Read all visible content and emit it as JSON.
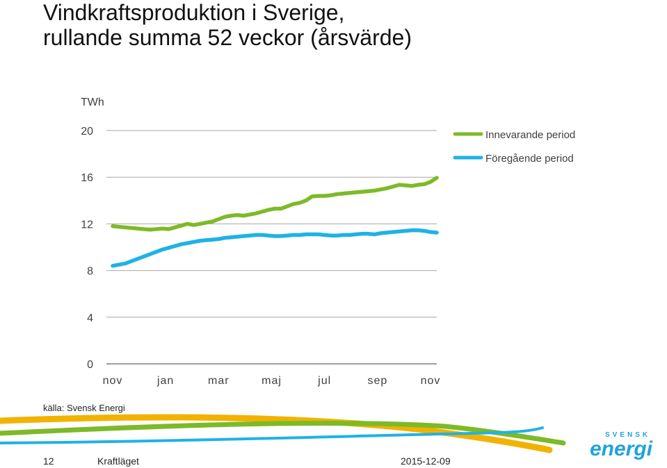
{
  "title_line1": "Vindkraftsproduktion i Sverige,",
  "title_line2": "rullande summa 52 veckor (årsvärde)",
  "chart_data": {
    "type": "line",
    "ylabel": "TWh",
    "ylim": [
      0,
      20
    ],
    "yticks": [
      0,
      4,
      8,
      12,
      16,
      20
    ],
    "x_labels": [
      "nov",
      "jan",
      "mar",
      "maj",
      "jul",
      "sep",
      "nov"
    ],
    "x_label_weeks": [
      1,
      9.5,
      18,
      26.5,
      35,
      43.5,
      52
    ],
    "x_range": [
      0,
      53
    ],
    "grid": true,
    "legend_position": "top-right",
    "series": [
      {
        "name": "Innevarande period",
        "color": "#7DBA27",
        "values": [
          11.8,
          11.75,
          11.7,
          11.65,
          11.6,
          11.55,
          11.5,
          11.55,
          11.6,
          11.55,
          11.7,
          11.85,
          12.0,
          11.9,
          12.0,
          12.1,
          12.2,
          12.4,
          12.6,
          12.7,
          12.75,
          12.7,
          12.8,
          12.9,
          13.05,
          13.2,
          13.3,
          13.3,
          13.5,
          13.7,
          13.8,
          14.0,
          14.35,
          14.4,
          14.4,
          14.45,
          14.55,
          14.6,
          14.65,
          14.7,
          14.75,
          14.8,
          14.85,
          14.95,
          15.05,
          15.2,
          15.35,
          15.3,
          15.25,
          15.35,
          15.4,
          15.6,
          15.95
        ]
      },
      {
        "name": "Föregående period",
        "color": "#1FB2E5",
        "values": [
          8.4,
          8.5,
          8.6,
          8.8,
          9.0,
          9.2,
          9.4,
          9.6,
          9.8,
          9.95,
          10.1,
          10.25,
          10.35,
          10.45,
          10.55,
          10.6,
          10.65,
          10.7,
          10.8,
          10.85,
          10.9,
          10.95,
          11.0,
          11.05,
          11.05,
          11.0,
          10.95,
          10.95,
          11.0,
          11.05,
          11.05,
          11.1,
          11.1,
          11.1,
          11.05,
          11.0,
          11.0,
          11.05,
          11.05,
          11.1,
          11.15,
          11.15,
          11.1,
          11.2,
          11.25,
          11.3,
          11.35,
          11.4,
          11.45,
          11.45,
          11.4,
          11.3,
          11.25
        ]
      }
    ]
  },
  "source_text": "källa: Svensk Energi",
  "footer": {
    "page_number": "12",
    "doc_name": "Kraftläget",
    "date": "2015-12-09"
  },
  "logo": {
    "top_text": "SVENSK",
    "main_text": "energi",
    "color": "#1FA3DB"
  }
}
